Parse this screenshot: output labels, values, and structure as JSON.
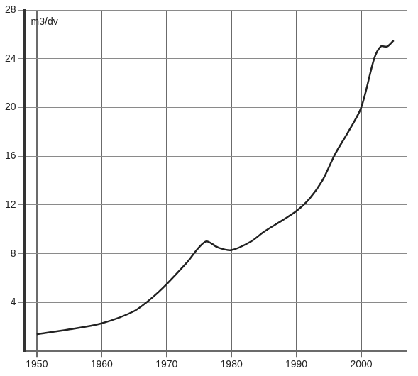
{
  "chart_data": {
    "type": "line",
    "ylabel": "m3/dv",
    "x": [
      1950,
      1955,
      1960,
      1965,
      1968,
      1970,
      1973,
      1976,
      1978,
      1980,
      1983,
      1985,
      1988,
      1990,
      1992,
      1994,
      1996,
      1998,
      2000,
      2002,
      2003,
      2004,
      2005
    ],
    "values": [
      1.4,
      1.8,
      2.3,
      3.3,
      4.5,
      5.5,
      7.2,
      9.0,
      8.5,
      8.3,
      9.0,
      9.8,
      10.8,
      11.5,
      12.5,
      14.0,
      16.2,
      18.0,
      20.0,
      24.0,
      25.0,
      25.0,
      25.5
    ],
    "color": "#222222",
    "xlim": [
      1948,
      2007
    ],
    "xticks": [
      1950,
      1960,
      1970,
      1980,
      1990,
      2000
    ],
    "ylim": [
      0,
      28
    ],
    "yticks": [
      4,
      8,
      12,
      16,
      20,
      24,
      28
    ],
    "grid": true
  }
}
